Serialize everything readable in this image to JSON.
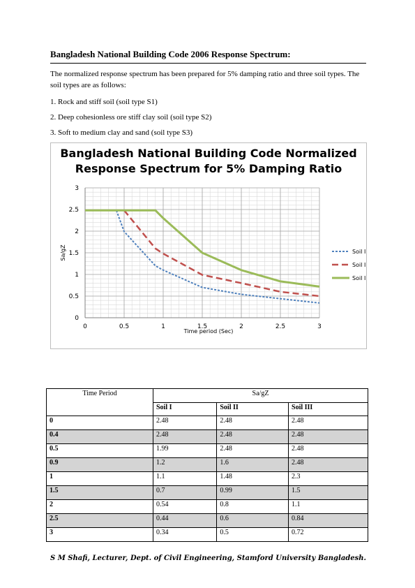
{
  "heading": "Bangladesh National Building Code 2006 Response Spectrum:",
  "intro": "The normalized response spectrum has been prepared for 5% damping ratio and three soil types. The soil types are as follows:",
  "soil_types": [
    "1. Rock and stiff soil (soil type S1)",
    "2. Deep cohesionless ore stiff clay soil (soil type S2)",
    "3. Soft to medium clay and sand (soil type S3)"
  ],
  "chart_data": {
    "type": "line",
    "title_lines": [
      "Bangladesh National Building Code Normalized",
      "Response Spectrum for 5% Damping Ratio"
    ],
    "xlabel": "Time period (Sec)",
    "ylabel": "Sa/gZ",
    "xlim": [
      0,
      3
    ],
    "ylim": [
      0,
      3
    ],
    "xticks": [
      "0",
      "0.5",
      "1",
      "1.5",
      "2",
      "2.5",
      "3"
    ],
    "yticks": [
      "0",
      "0.5",
      "1",
      "1.5",
      "2",
      "2.5",
      "3"
    ],
    "grid": true,
    "legend_position": "right",
    "series": [
      {
        "name": "Soil I",
        "color": "#4f81bd",
        "style": "dotted",
        "x": [
          0,
          0.4,
          0.5,
          0.9,
          1,
          1.5,
          2,
          2.5,
          3
        ],
        "y": [
          2.48,
          2.48,
          1.99,
          1.2,
          1.1,
          0.7,
          0.54,
          0.44,
          0.34
        ]
      },
      {
        "name": "Soil II",
        "color": "#c0504d",
        "style": "dashed",
        "x": [
          0,
          0.4,
          0.5,
          0.9,
          1,
          1.5,
          2,
          2.5,
          3
        ],
        "y": [
          2.48,
          2.48,
          2.48,
          1.6,
          1.48,
          0.99,
          0.8,
          0.6,
          0.5
        ]
      },
      {
        "name": "Soil III",
        "color": "#9bbb59",
        "style": "solid",
        "x": [
          0,
          0.4,
          0.5,
          0.9,
          1,
          1.5,
          2,
          2.5,
          3
        ],
        "y": [
          2.48,
          2.48,
          2.48,
          2.48,
          2.3,
          1.5,
          1.1,
          0.84,
          0.72
        ]
      }
    ]
  },
  "table": {
    "header_period": "Time Period",
    "header_sagz": "Sa/gZ",
    "columns": [
      "Soil I",
      "Soil II",
      "Soil III"
    ],
    "rows": [
      {
        "period": "0",
        "values": [
          "2.48",
          "2.48",
          "2.48"
        ],
        "shaded": false
      },
      {
        "period": "0.4",
        "values": [
          "2.48",
          "2.48",
          "2.48"
        ],
        "shaded": true
      },
      {
        "period": "0.5",
        "values": [
          "1.99",
          "2.48",
          "2.48"
        ],
        "shaded": false
      },
      {
        "period": "0.9",
        "values": [
          "1.2",
          "1.6",
          "2.48"
        ],
        "shaded": true
      },
      {
        "period": "1",
        "values": [
          "1.1",
          "1.48",
          "2.3"
        ],
        "shaded": false
      },
      {
        "period": "1.5",
        "values": [
          "0.7",
          "0.99",
          "1.5"
        ],
        "shaded": true
      },
      {
        "period": "2",
        "values": [
          "0.54",
          "0.8",
          "1.1"
        ],
        "shaded": false
      },
      {
        "period": "2.5",
        "values": [
          "0.44",
          "0.6",
          "0.84"
        ],
        "shaded": true
      },
      {
        "period": "3",
        "values": [
          "0.34",
          "0.5",
          "0.72"
        ],
        "shaded": false
      }
    ]
  },
  "footer": "S M Shafi, Lecturer, Dept. of Civil Engineering, Stamford University Bangladesh."
}
